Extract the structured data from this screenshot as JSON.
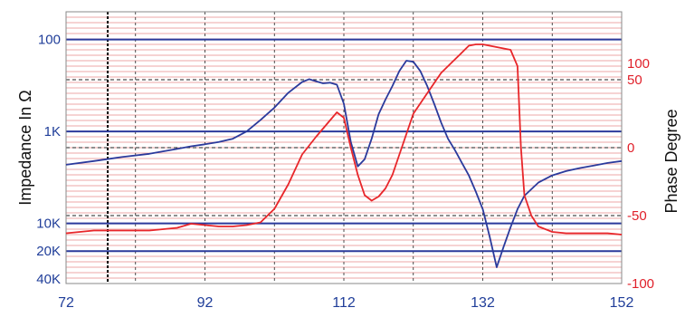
{
  "chart_data": {
    "type": "line",
    "title": "",
    "xlabel": "",
    "ylabel_left": "Impedance In Ω",
    "ylabel_right": "Phase Degree",
    "x_ticks": [
      72,
      92,
      112,
      132,
      152
    ],
    "xlim": [
      72,
      152
    ],
    "left_scale": "log",
    "left_tick_labels": [
      "100",
      "1K",
      "10K",
      "20K",
      "40K"
    ],
    "left_tick_values": [
      100,
      1000,
      10000,
      20000,
      40000
    ],
    "left_lim": [
      50,
      45000
    ],
    "right_ticks": [
      100,
      50,
      0,
      -50,
      -100
    ],
    "right_lim": [
      -100,
      100
    ],
    "series": [
      {
        "name": "",
        "axis": "left",
        "color": "#2b3a9c",
        "points": [
          [
            72,
            2300
          ],
          [
            76,
            2100
          ],
          [
            80,
            1900
          ],
          [
            84,
            1750
          ],
          [
            88,
            1550
          ],
          [
            90,
            1450
          ],
          [
            92,
            1380
          ],
          [
            94,
            1300
          ],
          [
            96,
            1200
          ],
          [
            98,
            1000
          ],
          [
            100,
            750
          ],
          [
            102,
            550
          ],
          [
            104,
            380
          ],
          [
            106,
            290
          ],
          [
            107,
            270
          ],
          [
            108,
            285
          ],
          [
            109,
            300
          ],
          [
            110,
            295
          ],
          [
            111,
            310
          ],
          [
            112,
            500
          ],
          [
            113,
            1300
          ],
          [
            114,
            2400
          ],
          [
            115,
            2000
          ],
          [
            116,
            1200
          ],
          [
            117,
            650
          ],
          [
            118,
            450
          ],
          [
            119,
            320
          ],
          [
            120,
            220
          ],
          [
            121,
            170
          ],
          [
            122,
            175
          ],
          [
            123,
            220
          ],
          [
            124,
            320
          ],
          [
            125,
            500
          ],
          [
            126,
            800
          ],
          [
            127,
            1200
          ],
          [
            128,
            1600
          ],
          [
            129,
            2200
          ],
          [
            130,
            3000
          ],
          [
            131,
            4500
          ],
          [
            132,
            7000
          ],
          [
            133,
            14000
          ],
          [
            134,
            30000
          ],
          [
            135,
            18000
          ],
          [
            136,
            11000
          ],
          [
            137,
            7000
          ],
          [
            138,
            5000
          ],
          [
            140,
            3600
          ],
          [
            142,
            3000
          ],
          [
            144,
            2700
          ],
          [
            146,
            2500
          ],
          [
            148,
            2350
          ],
          [
            150,
            2200
          ],
          [
            152,
            2100
          ]
        ]
      },
      {
        "name": "",
        "axis": "right",
        "color": "#e8262a",
        "points": [
          [
            72,
            -63
          ],
          [
            74,
            -62
          ],
          [
            76,
            -61
          ],
          [
            80,
            -61
          ],
          [
            84,
            -61
          ],
          [
            88,
            -59
          ],
          [
            90,
            -56
          ],
          [
            92,
            -57
          ],
          [
            94,
            -58
          ],
          [
            96,
            -58
          ],
          [
            98,
            -57
          ],
          [
            100,
            -55
          ],
          [
            102,
            -45
          ],
          [
            104,
            -27
          ],
          [
            106,
            -5
          ],
          [
            108,
            8
          ],
          [
            110,
            20
          ],
          [
            111,
            26
          ],
          [
            112,
            22
          ],
          [
            113,
            0
          ],
          [
            114,
            -20
          ],
          [
            115,
            -35
          ],
          [
            116,
            -39
          ],
          [
            117,
            -36
          ],
          [
            118,
            -30
          ],
          [
            119,
            -20
          ],
          [
            120,
            -5
          ],
          [
            121,
            10
          ],
          [
            122,
            25
          ],
          [
            124,
            40
          ],
          [
            126,
            55
          ],
          [
            128,
            65
          ],
          [
            129,
            70
          ],
          [
            130,
            75
          ],
          [
            131,
            76
          ],
          [
            132,
            76
          ],
          [
            134,
            74
          ],
          [
            136,
            72
          ],
          [
            137,
            60
          ],
          [
            137.5,
            0
          ],
          [
            138,
            -35
          ],
          [
            139,
            -50
          ],
          [
            140,
            -58
          ],
          [
            142,
            -62
          ],
          [
            144,
            -63
          ],
          [
            148,
            -63
          ],
          [
            150,
            -63
          ],
          [
            152,
            -64
          ]
        ]
      }
    ],
    "marker_x": 78,
    "grid": true
  }
}
